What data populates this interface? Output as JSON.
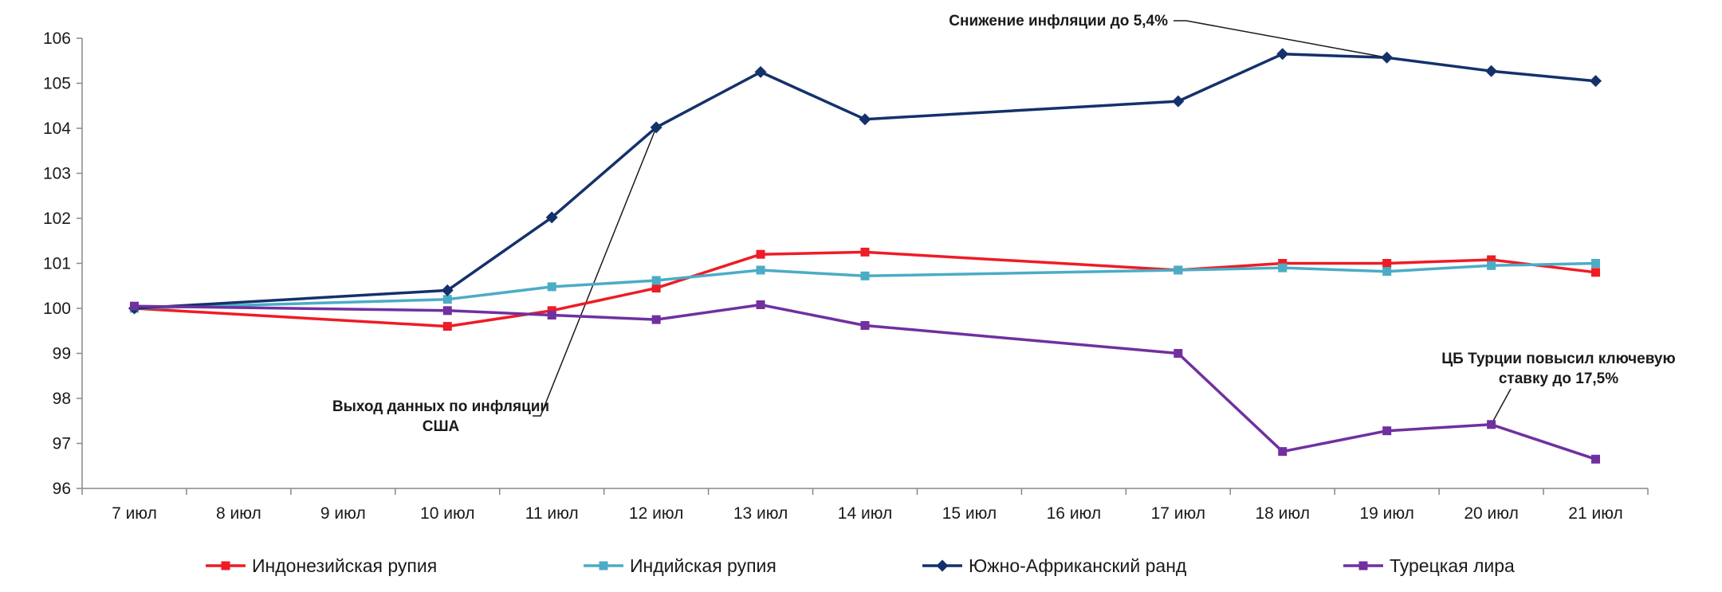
{
  "chart_data": {
    "type": "line",
    "title": "",
    "xlabel": "",
    "ylabel": "",
    "categories": [
      "7 июл",
      "8 июл",
      "9 июл",
      "10 июл",
      "11 июл",
      "12 июл",
      "13 июл",
      "14 июл",
      "15 июл",
      "16 июл",
      "17 июл",
      "18 июл",
      "19 июл",
      "20 июл",
      "21 июл"
    ],
    "ylim": [
      96,
      106
    ],
    "yticks": [
      96,
      97,
      98,
      99,
      100,
      101,
      102,
      103,
      104,
      105,
      106
    ],
    "grid": false,
    "legend_position": "bottom",
    "series": [
      {
        "name": "Индонезийская рупия",
        "color": "#ee1c25",
        "marker": "square",
        "values": [
          100.0,
          null,
          null,
          99.6,
          99.95,
          100.45,
          101.2,
          101.25,
          null,
          null,
          100.85,
          101.0,
          101.0,
          101.08,
          100.8
        ]
      },
      {
        "name": "Индийская рупия",
        "color": "#4bacc6",
        "marker": "square",
        "values": [
          100.0,
          null,
          null,
          100.2,
          100.48,
          100.62,
          100.85,
          100.72,
          null,
          null,
          100.85,
          100.9,
          100.82,
          100.95,
          101.0
        ]
      },
      {
        "name": "Южно-Африканский ранд",
        "color": "#14316b",
        "marker": "diamond",
        "values": [
          100.0,
          null,
          null,
          100.4,
          102.02,
          104.02,
          105.25,
          104.2,
          null,
          null,
          104.6,
          105.65,
          105.57,
          105.27,
          105.05
        ]
      },
      {
        "name": "Турецкая лира",
        "color": "#7030a0",
        "marker": "square",
        "values": [
          100.05,
          null,
          null,
          99.95,
          99.85,
          99.75,
          100.08,
          99.62,
          null,
          null,
          99.0,
          96.82,
          97.28,
          97.42,
          96.65
        ]
      }
    ],
    "annotations": [
      {
        "lines": [
          "Снижение инфляции до 5,4%"
        ],
        "series": 2,
        "category": 12
      },
      {
        "lines": [
          "Выход данных по инфляции",
          "США"
        ],
        "series": 2,
        "category": 5
      },
      {
        "lines": [
          "ЦБ Турции повысил ключевую",
          "ставку до 17,5%"
        ],
        "series": 3,
        "category": 13
      }
    ]
  }
}
